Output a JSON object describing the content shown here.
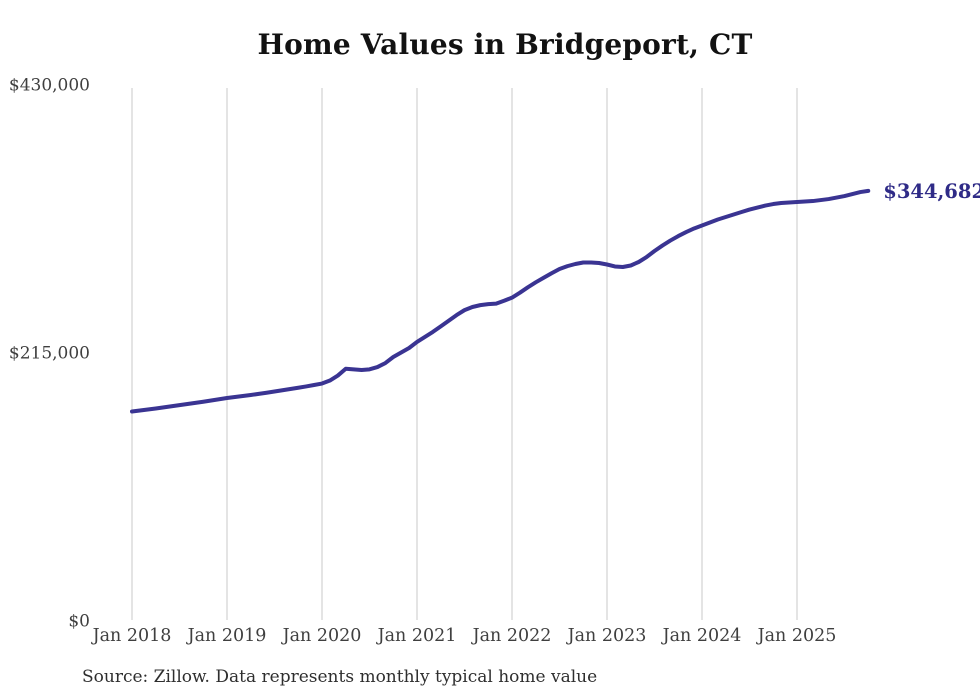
{
  "chart": {
    "title": "Home Values in Bridgeport, CT",
    "source": "Source: Zillow. Data represents monthly typical home value"
  },
  "chart_data": {
    "type": "line",
    "title": "Home Values in Bridgeport, CT",
    "source": "Source: Zillow. Data represents monthly typical home value",
    "series_name": "Monthly typical home value",
    "x_unit": "month",
    "x_start": "2018-01",
    "x_end": "2025-10",
    "x_note": "values are consecutive months from x_start to x_end",
    "x_tick_labels": [
      "Jan 2018",
      "Jan 2019",
      "Jan 2020",
      "Jan 2021",
      "Jan 2022",
      "Jan 2023",
      "Jan 2024",
      "Jan 2025"
    ],
    "y_ticks": [
      {
        "label": "$0",
        "value": 0
      },
      {
        "label": "$215,000",
        "value": 215000
      },
      {
        "label": "$430,000",
        "value": 430000
      }
    ],
    "ylim": [
      0,
      430000
    ],
    "grid": "vertical-only",
    "legend": "none",
    "end_label": "$344,682",
    "end_value": 344682,
    "values": [
      167700,
      168500,
      169300,
      170100,
      171000,
      171900,
      172800,
      173700,
      174600,
      175500,
      176500,
      177500,
      178500,
      179300,
      180100,
      180900,
      181800,
      182700,
      183700,
      184700,
      185700,
      186700,
      187800,
      188900,
      190100,
      192500,
      196500,
      202000,
      201500,
      201000,
      201500,
      203300,
      206500,
      211400,
      215000,
      218600,
      223500,
      227500,
      231500,
      236000,
      240500,
      245000,
      249000,
      251500,
      253000,
      253800,
      254200,
      256500,
      259000,
      263000,
      267300,
      271300,
      275000,
      278600,
      282000,
      284300,
      286000,
      287200,
      287200,
      286800,
      285600,
      284000,
      283600,
      284800,
      287600,
      291600,
      296400,
      300800,
      304800,
      308400,
      311600,
      314500,
      316900,
      319300,
      321700,
      323700,
      325700,
      327700,
      329700,
      331300,
      332900,
      334100,
      334900,
      335300,
      335700,
      336100,
      336500,
      337300,
      338100,
      339300,
      340500,
      342100,
      343700,
      344682
    ],
    "colors": {
      "line": "#3a3492",
      "end_label": "#2f2b87",
      "grid": "#c9c9c9",
      "tick_label": "#3f3f3f",
      "title": "#121212",
      "source": "#2e2e2e",
      "background": "#ffffff"
    }
  }
}
